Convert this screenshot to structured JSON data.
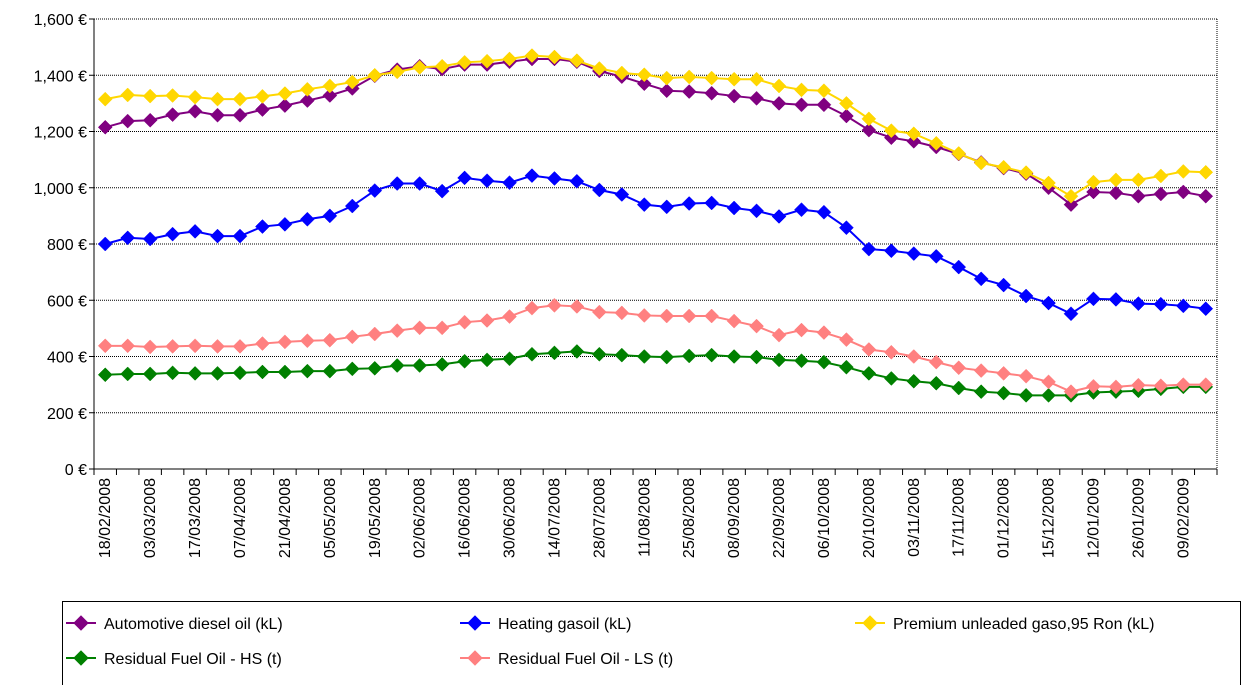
{
  "chart_data": {
    "type": "line",
    "title": "",
    "xlabel": "",
    "ylabel": "",
    "ylim": [
      0,
      1600
    ],
    "y_ticks": [
      "0 €",
      "200 €",
      "400 €",
      "600 €",
      "800 €",
      "1,000 €",
      "1,200 €",
      "1,400 €",
      "1,600 €"
    ],
    "grid": true,
    "legend": "bottom",
    "x_tick_labels": [
      "18/02/2008",
      "03/03/2008",
      "17/03/2008",
      "07/04/2008",
      "21/04/2008",
      "05/05/2008",
      "19/05/2008",
      "02/06/2008",
      "16/06/2008",
      "30/06/2008",
      "14/07/2008",
      "28/07/2008",
      "11/08/2008",
      "25/08/2008",
      "08/09/2008",
      "22/09/2008",
      "06/10/2008",
      "20/10/2008",
      "03/11/2008",
      "17/11/2008",
      "01/12/2008",
      "15/12/2008",
      "12/01/2009",
      "26/01/2009",
      "09/02/2009"
    ],
    "series": [
      {
        "name": "Automotive diesel oil (kL)",
        "color": "#800080",
        "values": [
          1215,
          1237,
          1240,
          1260,
          1272,
          1258,
          1258,
          1278,
          1292,
          1310,
          1328,
          1353,
          1398,
          1420,
          1432,
          1422,
          1438,
          1438,
          1448,
          1458,
          1458,
          1448,
          1415,
          1395,
          1370,
          1345,
          1342,
          1336,
          1326,
          1318,
          1300,
          1295,
          1295,
          1255,
          1205,
          1178,
          1165,
          1145,
          1120,
          1090,
          1070,
          1050,
          1000,
          940,
          985,
          982,
          970,
          978,
          985,
          970
        ]
      },
      {
        "name": "Heating gasoil (kL)",
        "color": "#0000FF",
        "values": [
          800,
          822,
          818,
          835,
          845,
          828,
          828,
          862,
          870,
          888,
          900,
          935,
          990,
          1015,
          1015,
          988,
          1035,
          1025,
          1018,
          1043,
          1033,
          1023,
          992,
          976,
          940,
          932,
          944,
          946,
          928,
          918,
          898,
          922,
          913,
          858,
          782,
          776,
          766,
          756,
          718,
          676,
          654,
          615,
          590,
          552,
          605,
          603,
          588,
          586,
          580,
          570
        ]
      },
      {
        "name": "Premium unleaded gaso,95 Ron (kL)",
        "color": "#FFD700",
        "values": [
          1315,
          1330,
          1326,
          1328,
          1322,
          1315,
          1315,
          1325,
          1335,
          1350,
          1362,
          1376,
          1400,
          1412,
          1428,
          1432,
          1446,
          1450,
          1458,
          1470,
          1465,
          1452,
          1424,
          1408,
          1402,
          1390,
          1394,
          1390,
          1386,
          1386,
          1362,
          1348,
          1345,
          1300,
          1245,
          1203,
          1192,
          1158,
          1122,
          1088,
          1073,
          1054,
          1017,
          970,
          1020,
          1028,
          1028,
          1042,
          1058,
          1055
        ]
      },
      {
        "name": "Residual Fuel Oil - HS (t)",
        "color": "#008000",
        "values": [
          335,
          338,
          338,
          342,
          340,
          340,
          342,
          345,
          345,
          348,
          348,
          356,
          358,
          368,
          368,
          372,
          383,
          388,
          392,
          408,
          413,
          418,
          408,
          405,
          400,
          398,
          402,
          405,
          400,
          398,
          388,
          385,
          380,
          362,
          340,
          322,
          312,
          305,
          288,
          275,
          270,
          262,
          262,
          262,
          272,
          275,
          278,
          285,
          292,
          292
        ]
      },
      {
        "name": "Residual Fuel Oil - LS (t)",
        "color": "#FF8080",
        "values": [
          438,
          438,
          434,
          436,
          438,
          436,
          436,
          446,
          452,
          456,
          458,
          470,
          480,
          492,
          502,
          502,
          522,
          528,
          542,
          572,
          582,
          578,
          558,
          555,
          546,
          544,
          544,
          544,
          526,
          508,
          476,
          494,
          485,
          460,
          425,
          415,
          400,
          380,
          360,
          350,
          340,
          330,
          310,
          275,
          294,
          292,
          298,
          296,
          300,
          300
        ]
      }
    ]
  }
}
